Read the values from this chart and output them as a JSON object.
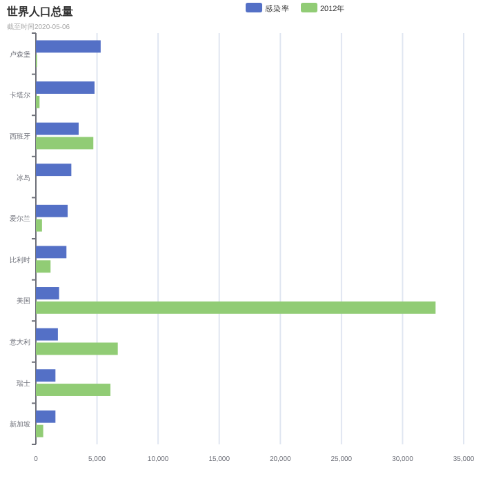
{
  "chart_data": {
    "type": "bar",
    "orientation": "horizontal",
    "title": "世界人口总量",
    "subtitle": "截至时间2020-05-06",
    "categories": [
      "卢森堡",
      "卡塔尔",
      "西班牙",
      "冰岛",
      "爱尔兰",
      "比利时",
      "美国",
      "意大利",
      "瑞士",
      "新加坡"
    ],
    "series": [
      {
        "name": "感染率",
        "color": "#5470c6",
        "values": [
          5300,
          4800,
          3500,
          2900,
          2600,
          2500,
          1900,
          1800,
          1600,
          1600
        ]
      },
      {
        "name": "2012年",
        "color": "#91cc75",
        "values": [
          100,
          300,
          4700,
          null,
          500,
          1200,
          32700,
          6700,
          6100,
          600
        ]
      }
    ],
    "xlim": [
      0,
      35000
    ],
    "xticks": [
      0,
      {
        "value": 5000,
        "label": "5,000"
      },
      {
        "value": 10000,
        "label": "10,000"
      },
      {
        "value": 15000,
        "label": "15,000"
      },
      {
        "value": 20000,
        "label": "20,000"
      },
      {
        "value": 25000,
        "label": "25,000"
      },
      {
        "value": 30000,
        "label": "30,000"
      },
      {
        "value": 35000,
        "label": "35,000"
      }
    ],
    "grid": "x",
    "legend": "top"
  }
}
